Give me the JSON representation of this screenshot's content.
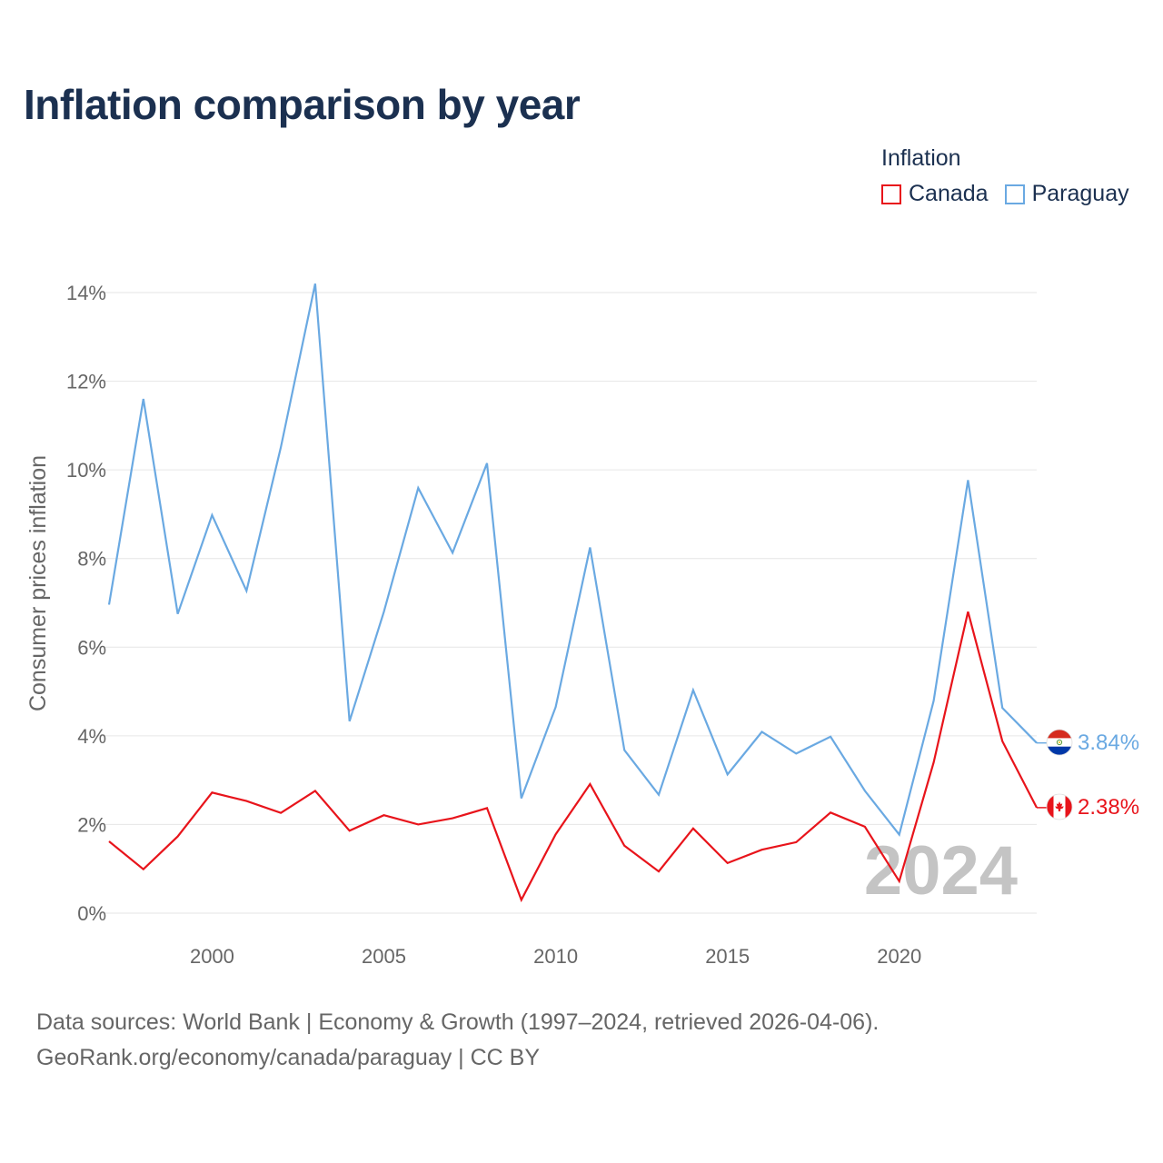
{
  "title": "Inflation comparison by year",
  "legend": {
    "title": "Inflation",
    "items": [
      {
        "label": "Canada",
        "color": "#e8141b"
      },
      {
        "label": "Paraguay",
        "color": "#6aa9e2"
      }
    ]
  },
  "watermark_year": "2024",
  "end_labels": {
    "paraguay": "3.84%",
    "canada": "2.38%"
  },
  "footer": {
    "line1": "Data sources: World Bank | Economy & Growth (1997–2024, retrieved 2026-04-06).",
    "line2": "GeoRank.org/economy/canada/paraguay | CC BY"
  },
  "chart_data": {
    "type": "line",
    "title": "Inflation comparison by year",
    "xlabel": "",
    "ylabel": "Consumer prices inflation",
    "xlim": [
      1997,
      2024
    ],
    "ylim": [
      0,
      14
    ],
    "x_ticks": [
      2000,
      2005,
      2010,
      2015,
      2020
    ],
    "x_tick_labels": [
      "2000",
      "2005",
      "2010",
      "2015",
      "2020"
    ],
    "y_ticks": [
      0,
      2,
      4,
      6,
      8,
      10,
      12,
      14
    ],
    "y_tick_labels": [
      "0%",
      "2%",
      "4%",
      "6%",
      "8%",
      "10%",
      "12%",
      "14%"
    ],
    "grid": true,
    "legend_position": "top-right",
    "x": [
      1997,
      1998,
      1999,
      2000,
      2001,
      2002,
      2003,
      2004,
      2005,
      2006,
      2007,
      2008,
      2009,
      2010,
      2011,
      2012,
      2013,
      2014,
      2015,
      2016,
      2017,
      2018,
      2019,
      2020,
      2021,
      2022,
      2023,
      2024
    ],
    "series": [
      {
        "name": "Canada",
        "color": "#e8141b",
        "values": [
          1.62,
          0.99,
          1.73,
          2.72,
          2.53,
          2.26,
          2.76,
          1.86,
          2.21,
          2.0,
          2.14,
          2.37,
          0.3,
          1.78,
          2.91,
          1.52,
          0.94,
          1.91,
          1.13,
          1.43,
          1.6,
          2.27,
          1.95,
          0.72,
          3.4,
          6.8,
          3.88,
          2.38
        ]
      },
      {
        "name": "Paraguay",
        "color": "#6aa9e2",
        "values": [
          6.96,
          11.6,
          6.75,
          8.98,
          7.27,
          10.51,
          14.2,
          4.33,
          6.8,
          9.59,
          8.13,
          10.15,
          2.59,
          4.65,
          8.25,
          3.68,
          2.67,
          5.03,
          3.13,
          4.09,
          3.6,
          3.98,
          2.76,
          1.77,
          4.79,
          9.77,
          4.63,
          3.84
        ]
      }
    ]
  }
}
